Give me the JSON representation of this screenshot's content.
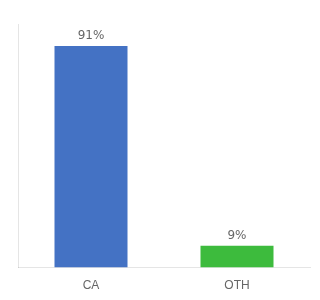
{
  "chart_data": {
    "type": "bar",
    "categories": [
      "CA",
      "OTH"
    ],
    "values": [
      91,
      9
    ],
    "value_labels": [
      "91%",
      "9%"
    ],
    "colors": [
      "#4472c4",
      "#3dbb3d"
    ],
    "ylim": [
      0,
      100
    ],
    "grid": false,
    "data_labels": true,
    "tick_labels": "x"
  }
}
